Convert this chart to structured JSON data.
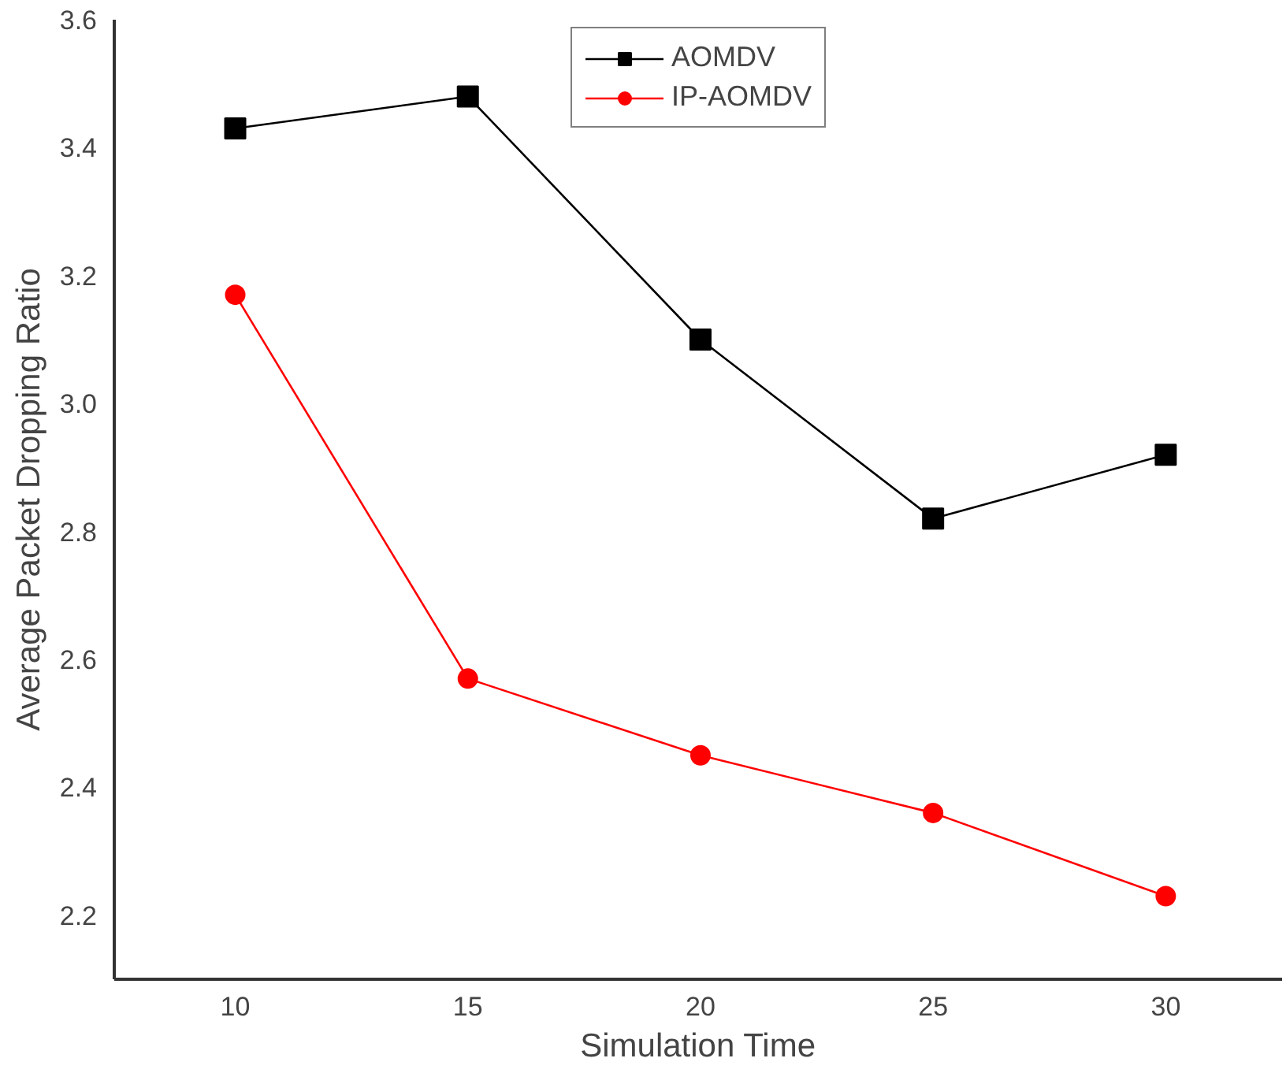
{
  "chart_data": {
    "type": "line",
    "xlabel": "Simulation Time",
    "ylabel": "Average Packet Dropping Ratio",
    "x": [
      10,
      15,
      20,
      25,
      30
    ],
    "series": [
      {
        "name": "AOMDV",
        "color": "#000000",
        "marker": "square",
        "values": [
          3.43,
          3.48,
          3.1,
          2.82,
          2.92
        ]
      },
      {
        "name": "IP-AOMDV",
        "color": "#ff0000",
        "marker": "circle",
        "values": [
          3.17,
          2.57,
          2.45,
          2.36,
          2.23
        ]
      }
    ],
    "xlim": [
      7.4,
      32.5
    ],
    "ylim": [
      2.1,
      3.6
    ],
    "xticks": [
      10,
      15,
      20,
      25,
      30
    ],
    "yticks": [
      2.2,
      2.4,
      2.6,
      2.8,
      {
        "value": 3.0,
        "label": "3.0"
      },
      3.2,
      3.4,
      3.6
    ],
    "grid": false,
    "legend": "top right",
    "line_style": "solid"
  }
}
